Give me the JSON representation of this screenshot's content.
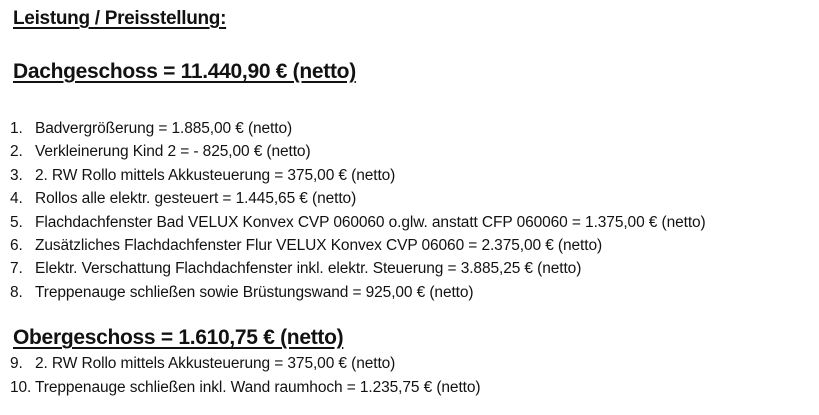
{
  "document": {
    "title": "Leistung / Preisstellung:",
    "text_color": "#121212",
    "background_color": "#ffffff",
    "sections": [
      {
        "heading": "Dachgeschoss = 11.440,90 € (netto)",
        "items": [
          {
            "number": "1.",
            "text": "Badvergrößerung = 1.885,00 € (netto)"
          },
          {
            "number": "2.",
            "text": "Verkleinerung Kind 2 = - 825,00 € (netto)"
          },
          {
            "number": "3.",
            "text": "2. RW Rollo mittels Akkusteuerung = 375,00 € (netto)"
          },
          {
            "number": "4.",
            "text": "Rollos alle elektr. gesteuert = 1.445,65 € (netto)"
          },
          {
            "number": "5.",
            "text": "Flachdachfenster Bad VELUX Konvex CVP 060060 o.glw. anstatt CFP 060060 = 1.375,00 € (netto)"
          },
          {
            "number": "6.",
            "text": "Zusätzliches Flachdachfenster Flur VELUX Konvex CVP 06060 = 2.375,00 € (netto)"
          },
          {
            "number": "7.",
            "text": "Elektr. Verschattung Flachdachfenster inkl. elektr. Steuerung = 3.885,25 € (netto)"
          },
          {
            "number": "8.",
            "text": "Treppenauge schließen sowie Brüstungswand = 925,00 € (netto)"
          }
        ]
      },
      {
        "heading": "Obergeschoss = 1.610,75 € (netto)",
        "items": [
          {
            "number": "9.",
            "text": "2. RW Rollo mittels Akkusteuerung = 375,00 € (netto)"
          },
          {
            "number": "10.",
            "text": "Treppenauge schließen inkl. Wand raumhoch = 1.235,75 € (netto)"
          }
        ]
      }
    ]
  }
}
